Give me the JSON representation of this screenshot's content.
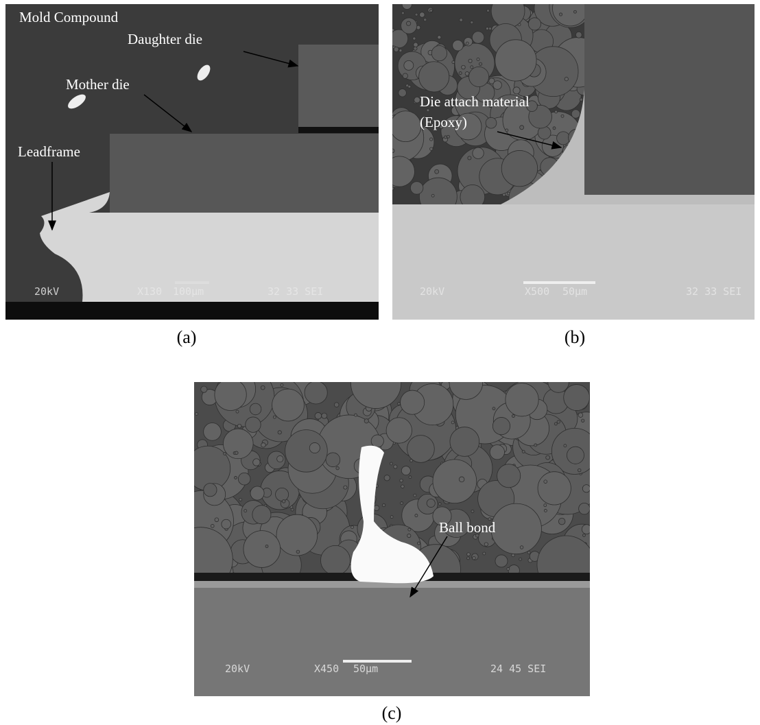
{
  "panels": [
    {
      "caption": "(a)",
      "annotations": [
        "Mold Compound",
        "Daughter die",
        "Mother die",
        "Leadframe"
      ],
      "info_bar": [
        "20kV",
        "X130",
        "100µm",
        "32 33 SEI"
      ]
    },
    {
      "caption": "(b)",
      "annotations": [
        "Die attach material",
        "(Epoxy)"
      ],
      "info_bar": [
        "20kV",
        "X500",
        "50µm",
        "32 33 SEI"
      ]
    },
    {
      "caption": "(c)",
      "annotations": [
        "Ball bond"
      ],
      "info_bar": [
        "20kV",
        "X450",
        "50µm",
        "24 45 SEI"
      ]
    }
  ]
}
